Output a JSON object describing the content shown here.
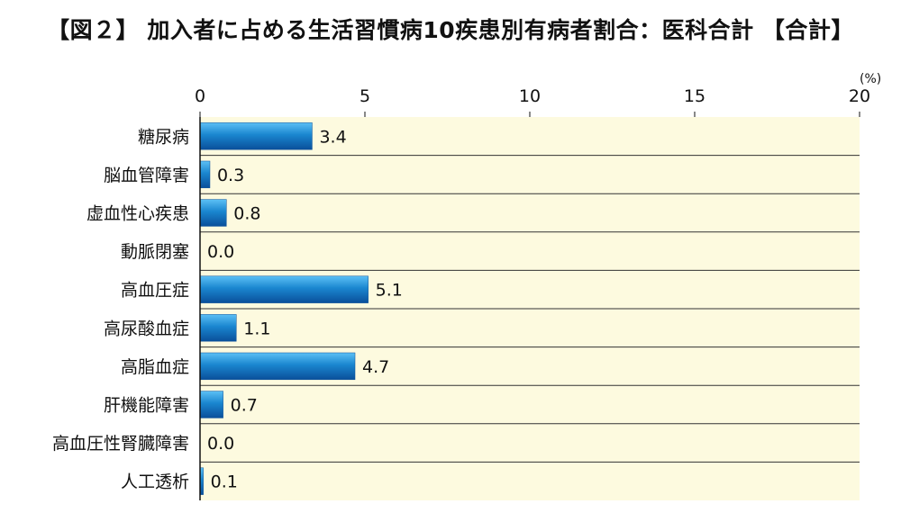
{
  "chart_data": {
    "type": "bar",
    "orientation": "horizontal",
    "title": "【図２】 加入者に占める生活習慣病10疾患別有病者割合：医科合計 【合計】",
    "unit": "(%)",
    "xlim": [
      0,
      20
    ],
    "xticks": [
      0,
      5,
      10,
      15,
      20
    ],
    "categories": [
      "糖尿病",
      "脳血管障害",
      "虚血性心疾患",
      "動脈閉塞",
      "高血圧症",
      "高尿酸血症",
      "高脂血症",
      "肝機能障害",
      "高血圧性腎臓障害",
      "人工透析"
    ],
    "values": [
      3.4,
      0.3,
      0.8,
      0.0,
      5.1,
      1.1,
      4.7,
      0.7,
      0.0,
      0.1
    ],
    "value_labels": [
      "3.4",
      "0.3",
      "0.8",
      "0.0",
      "5.1",
      "1.1",
      "4.7",
      "0.7",
      "0.0",
      "0.1"
    ],
    "grid": "horizontal row separators",
    "colors": {
      "bar": "#1a86cf",
      "bar_dark": "#0a4f9a",
      "bar_light": "#5cc0f5",
      "plot_bg": "#fdfadf",
      "axis": "#111111"
    }
  }
}
